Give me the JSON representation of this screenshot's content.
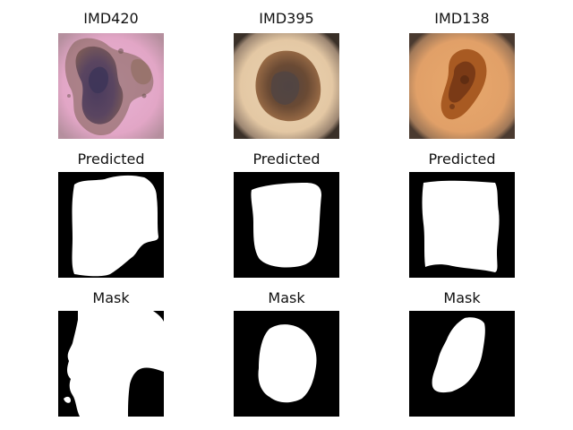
{
  "figure": {
    "rows": [
      {
        "kind": "image",
        "titles": [
          "IMD420",
          "IMD395",
          "IMD138"
        ]
      },
      {
        "kind": "predicted",
        "titles": [
          "Predicted",
          "Predicted",
          "Predicted"
        ]
      },
      {
        "kind": "mask",
        "titles": [
          "Mask",
          "Mask",
          "Mask"
        ]
      }
    ],
    "colors": {
      "mask_background": "#000000",
      "mask_foreground": "#ffffff",
      "lesion_dark": "#4e3a55",
      "skin_pink": "#e6a8cc",
      "skin_beige": "#e7c9a6",
      "skin_orange": "#dc9a5e"
    }
  }
}
